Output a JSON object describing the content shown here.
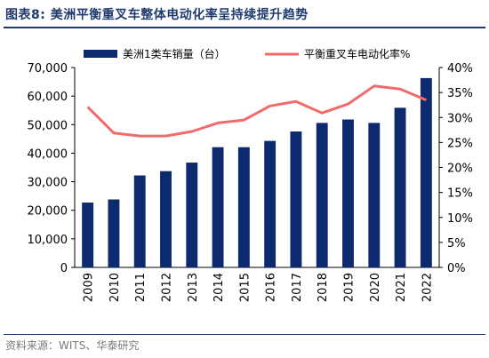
{
  "title": "图表8:   美洲平衡重叉车整体电动化率呈持续提升趋势",
  "source": "资料来源：WITS、华泰研究",
  "colors": {
    "bar": "#0d2a6e",
    "line": "#f26a6a",
    "title": "#1f3b6e"
  },
  "chart_data": {
    "type": "bar+line",
    "categories": [
      "2009",
      "2010",
      "2011",
      "2012",
      "2013",
      "2014",
      "2015",
      "2016",
      "2017",
      "2018",
      "2019",
      "2020",
      "2021",
      "2022"
    ],
    "series": [
      {
        "name": "美洲1类车销量（台）",
        "type": "bar",
        "axis": "left",
        "values": [
          22700,
          23800,
          32200,
          33700,
          36700,
          42100,
          42100,
          44300,
          47600,
          50600,
          51800,
          50600,
          55900,
          66300
        ]
      },
      {
        "name": "平衡重叉车电动化率%",
        "type": "line",
        "axis": "right",
        "values": [
          32.1,
          26.9,
          26.3,
          26.3,
          27.2,
          28.9,
          29.5,
          32.3,
          33.2,
          30.9,
          32.7,
          36.3,
          35.7,
          33.5
        ]
      }
    ],
    "y_left": {
      "ylim": [
        0,
        70000
      ],
      "ticks": [
        "0",
        "10,000",
        "20,000",
        "30,000",
        "40,000",
        "50,000",
        "60,000",
        "70,000"
      ]
    },
    "y_right": {
      "ylim": [
        0,
        40
      ],
      "ticks": [
        "0%",
        "5%",
        "10%",
        "15%",
        "20%",
        "25%",
        "30%",
        "35%",
        "40%"
      ]
    },
    "grid": false,
    "legend_position": "top"
  }
}
